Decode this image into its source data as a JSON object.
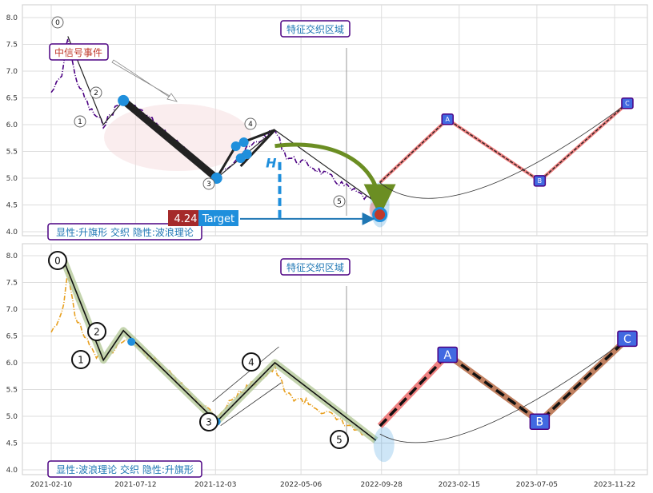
{
  "colors": {
    "top_price": "#4b0082",
    "bottom_price": "#e8a020",
    "wave_dark": "#222222",
    "wave_green_glow": "#b5c99a",
    "zone_fill": "#f3d6da",
    "blue_dot": "#1f8fdc",
    "label_border": "#4b0082",
    "label_blue_text": "#1f77b4",
    "label_red_text": "#c0392b",
    "forecast_fill": "#4169e1",
    "forecast_salmon": "#f08080",
    "forecast_brown": "#c08060",
    "arrow_green": "#6b8e23",
    "target_bg": "#1f8fdc",
    "target_value_bg": "#a52a2a"
  },
  "chart_data": [
    {
      "type": "line",
      "panel": "top",
      "ylim": [
        3.9,
        8.2
      ],
      "yticks": [
        "4.0",
        "4.5",
        "5.0",
        "5.5",
        "6.0",
        "6.5",
        "7.0",
        "7.5",
        "8.0"
      ],
      "grid": true,
      "price_series": {
        "x": [
          "2021-02-10",
          "2021-03-01",
          "2021-03-12",
          "2021-03-25",
          "2021-04-20",
          "2021-05-15",
          "2021-06-05",
          "2021-06-20",
          "2021-07-15",
          "2021-08-20",
          "2021-09-20",
          "2021-10-20",
          "2021-12-05",
          "2022-01-10",
          "2022-02-20",
          "2022-03-20",
          "2022-04-10",
          "2022-05-20",
          "2022-06-30",
          "2022-08-10",
          "2022-09-15",
          "2022-09-25"
        ],
        "y": [
          6.6,
          6.9,
          7.65,
          6.9,
          6.3,
          6.0,
          6.3,
          6.45,
          6.3,
          6.0,
          5.7,
          5.4,
          5.0,
          5.4,
          5.7,
          5.9,
          5.4,
          5.25,
          5.0,
          4.75,
          4.55,
          4.32
        ]
      },
      "wave_points": [
        {
          "label": "0",
          "x": "2021-03-12",
          "y": 7.65
        },
        {
          "label": "1",
          "x": "2021-05-15",
          "y": 6.0
        },
        {
          "label": "2",
          "x": "2021-06-20",
          "y": 6.45
        },
        {
          "label": "3",
          "x": "2021-12-05",
          "y": 5.0
        },
        {
          "label": "4",
          "x": "2022-03-20",
          "y": 5.9
        },
        {
          "label": "5",
          "x": "2022-09-18",
          "y": 4.55
        }
      ],
      "forecast_points": [
        {
          "label": "A",
          "x": "2023-01-25",
          "y": 6.1
        },
        {
          "label": "B",
          "x": "2023-07-10",
          "y": 4.95
        },
        {
          "label": "C",
          "x": "2023-12-15",
          "y": 6.4
        }
      ],
      "target": {
        "value": "4.24",
        "label": "Target"
      },
      "annotations": {
        "zone_label": "特征交织区域",
        "signal_label": "中信号事件",
        "pattern_label": "显性:升旗形 交织 隐性:波浪理论",
        "h_marker": "H"
      }
    },
    {
      "type": "line",
      "panel": "bottom",
      "ylim": [
        3.9,
        8.2
      ],
      "yticks": [
        "4.0",
        "4.5",
        "5.0",
        "5.5",
        "6.0",
        "6.5",
        "7.0",
        "7.5",
        "8.0"
      ],
      "xticks": [
        "2021-02-10",
        "2021-07-12",
        "2021-12-03",
        "2022-05-06",
        "2022-09-28",
        "2023-02-15",
        "2023-07-05",
        "2023-11-22"
      ],
      "grid": true,
      "price_series": {
        "x": [
          "2021-02-10",
          "2021-03-01",
          "2021-03-12",
          "2021-03-25",
          "2021-04-20",
          "2021-05-15",
          "2021-06-05",
          "2021-06-20",
          "2021-07-15",
          "2021-08-20",
          "2021-09-20",
          "2021-10-20",
          "2021-12-05",
          "2022-01-10",
          "2022-02-20",
          "2022-03-20",
          "2022-04-10",
          "2022-05-20",
          "2022-06-30",
          "2022-08-10",
          "2022-09-15"
        ],
        "y": [
          6.6,
          6.9,
          7.65,
          6.9,
          6.3,
          6.0,
          6.3,
          6.45,
          6.3,
          6.0,
          5.7,
          5.4,
          5.0,
          5.4,
          5.7,
          5.9,
          5.4,
          5.25,
          5.0,
          4.75,
          4.55
        ]
      },
      "wave_points": [
        {
          "label": "0",
          "x": "2021-03-05",
          "y": 7.9
        },
        {
          "label": "1",
          "x": "2021-05-15",
          "y": 6.05
        },
        {
          "label": "2",
          "x": "2021-06-20",
          "y": 6.6
        },
        {
          "label": "3",
          "x": "2021-12-05",
          "y": 4.9
        },
        {
          "label": "4",
          "x": "2022-03-20",
          "y": 6.0
        },
        {
          "label": "5",
          "x": "2022-09-18",
          "y": 4.55
        }
      ],
      "forecast_points": [
        {
          "label": "A",
          "x": "2023-01-25",
          "y": 6.15
        },
        {
          "label": "B",
          "x": "2023-07-10",
          "y": 4.9
        },
        {
          "label": "C",
          "x": "2023-12-15",
          "y": 6.45
        }
      ],
      "annotations": {
        "zone_label": "特征交织区域",
        "pattern_label": "显性:波浪理论 交织 隐性:升旗形"
      }
    }
  ]
}
